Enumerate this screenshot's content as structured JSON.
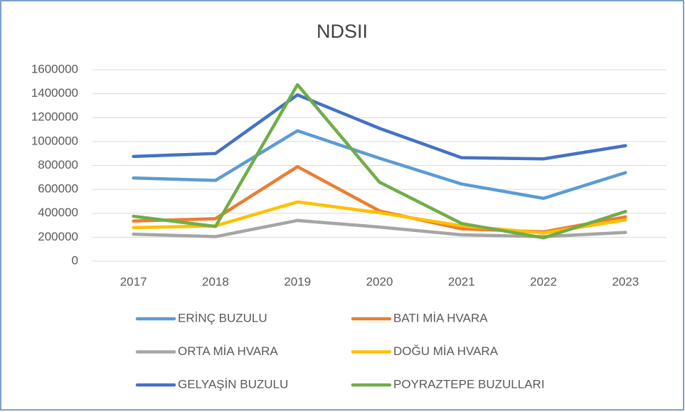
{
  "chart_data": {
    "type": "line",
    "title": "NDSII",
    "categories": [
      "2017",
      "2018",
      "2019",
      "2020",
      "2021",
      "2022",
      "2023"
    ],
    "ylim": [
      0,
      1600000
    ],
    "yticks": [
      0,
      200000,
      400000,
      600000,
      800000,
      1000000,
      1200000,
      1400000,
      1600000
    ],
    "grid": true,
    "legend": "bottom",
    "series": [
      {
        "name": "ERİNÇ BUZULU",
        "color": "#5b9bd5",
        "values": [
          695000,
          675000,
          1090000,
          860000,
          645000,
          525000,
          740000
        ]
      },
      {
        "name": "BATI MİA HVARA",
        "color": "#ed7d31",
        "values": [
          335000,
          355000,
          790000,
          420000,
          270000,
          245000,
          370000
        ]
      },
      {
        "name": "ORTA MİA HVARA",
        "color": "#a5a5a5",
        "values": [
          225000,
          205000,
          340000,
          285000,
          220000,
          205000,
          240000
        ]
      },
      {
        "name": "DOĞU MİA HVARA",
        "color": "#ffc000",
        "values": [
          280000,
          295000,
          495000,
          405000,
          295000,
          235000,
          345000
        ]
      },
      {
        "name": "GELYAŞİN BUZULU",
        "color": "#4472c4",
        "values": [
          875000,
          900000,
          1390000,
          1110000,
          865000,
          855000,
          965000
        ]
      },
      {
        "name": "POYRAZTEPE BUZULLARI",
        "color": "#70ad47",
        "values": [
          375000,
          290000,
          1475000,
          660000,
          315000,
          195000,
          415000
        ]
      }
    ]
  }
}
